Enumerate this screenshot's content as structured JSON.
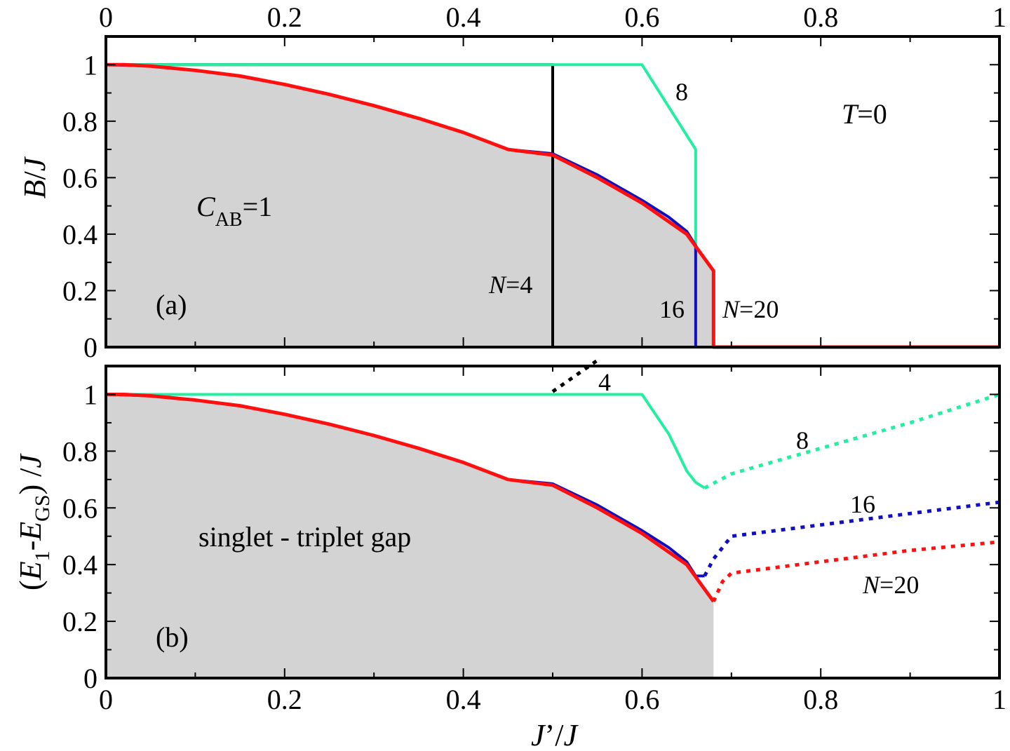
{
  "colors": {
    "n4": "#000000",
    "n8": "#22f0a0",
    "n16": "#1010c0",
    "n20": "#ff1010",
    "shade": "#d3d3d3"
  },
  "chart_data": [
    {
      "type": "line",
      "panel": "a",
      "panel_label": "(a)",
      "xlabel": "",
      "ylabel_parts": [
        "B",
        "/",
        "J"
      ],
      "xlim": [
        0,
        1
      ],
      "ylim": [
        0,
        1.1
      ],
      "x_ticks": [
        "0",
        "0.2",
        "0.4",
        "0.6",
        "0.8",
        "1"
      ],
      "y_ticks": [
        "0",
        "0.2",
        "0.4",
        "0.6",
        "0.8",
        "1"
      ],
      "annotations": {
        "temperature": {
          "italic": "T",
          "rest": "=0"
        },
        "region": {
          "main": "C",
          "sub": "AB",
          "rest": "=1"
        },
        "n4": {
          "italic": "N",
          "rest": "=4"
        },
        "n8": "8",
        "n16": "16",
        "n20": {
          "italic": "N",
          "rest": "=20"
        }
      },
      "shaded_region": "area under N=20 curve",
      "series": [
        {
          "key": "n4",
          "style": "solid",
          "x": [
            0,
            0.05,
            0.1,
            0.15,
            0.2,
            0.25,
            0.3,
            0.35,
            0.4,
            0.45,
            0.5,
            0.5,
            0.5,
            0.66
          ],
          "y": [
            1.0,
            1.0,
            1.0,
            1.0,
            1.0,
            1.0,
            1.0,
            1.0,
            1.0,
            1.0,
            1.0,
            0.68,
            0,
            0
          ]
        },
        {
          "key": "n8",
          "style": "solid",
          "x": [
            0,
            0.1,
            0.2,
            0.3,
            0.4,
            0.5,
            0.6,
            0.66,
            0.66,
            0.66
          ],
          "y": [
            1.0,
            1.0,
            1.0,
            1.0,
            1.0,
            1.0,
            1.0,
            0.7,
            0.7,
            0.36
          ]
        },
        {
          "key": "n16",
          "style": "solid",
          "x": [
            0,
            0.05,
            0.1,
            0.15,
            0.2,
            0.25,
            0.3,
            0.35,
            0.4,
            0.45,
            0.5,
            0.55,
            0.6,
            0.63,
            0.65,
            0.66,
            0.66
          ],
          "y": [
            1.0,
            0.995,
            0.98,
            0.96,
            0.93,
            0.895,
            0.855,
            0.81,
            0.76,
            0.7,
            0.685,
            0.61,
            0.52,
            0.46,
            0.41,
            0.36,
            0
          ]
        },
        {
          "key": "n20",
          "style": "solid",
          "x": [
            0,
            0.02,
            0.05,
            0.1,
            0.15,
            0.2,
            0.25,
            0.3,
            0.35,
            0.4,
            0.45,
            0.5,
            0.55,
            0.6,
            0.65,
            0.68,
            0.68,
            0.75,
            0.85,
            1.0
          ],
          "y": [
            1.0,
            1.0,
            0.995,
            0.98,
            0.96,
            0.93,
            0.895,
            0.855,
            0.81,
            0.76,
            0.7,
            0.68,
            0.6,
            0.51,
            0.4,
            0.27,
            0,
            0,
            0,
            0
          ]
        }
      ]
    },
    {
      "type": "line",
      "panel": "b",
      "panel_label": "(b)",
      "xlabel_parts": [
        "J",
        "’/",
        "J"
      ],
      "ylabel_parts": [
        "(",
        "E",
        "1",
        "-",
        "E",
        "GS",
        ") /",
        "J"
      ],
      "xlim": [
        0,
        1
      ],
      "ylim": [
        0,
        1.1
      ],
      "x_ticks": [
        "0",
        "0.2",
        "0.4",
        "0.6",
        "0.8",
        "1"
      ],
      "y_ticks": [
        "0",
        "0.2",
        "0.4",
        "0.6",
        "0.8",
        "1"
      ],
      "annotations": {
        "gap_text": "singlet - triplet gap",
        "n4": "4",
        "n8": "8",
        "n16": "16",
        "n20": {
          "italic": "N",
          "rest": "=20"
        }
      },
      "shaded_region": "area under N=20 curve",
      "series": [
        {
          "key": "n4",
          "style": "dotted",
          "x": [
            0.5,
            0.55
          ],
          "y": [
            1.01,
            1.12
          ]
        },
        {
          "key": "n8",
          "style": "solid",
          "x": [
            0,
            0.1,
            0.2,
            0.3,
            0.4,
            0.5,
            0.6,
            0.63,
            0.65,
            0.66,
            0.67
          ],
          "y": [
            1.0,
            1.0,
            1.0,
            1.0,
            1.0,
            1.0,
            1.0,
            0.86,
            0.73,
            0.69,
            0.67
          ]
        },
        {
          "key": "n8",
          "style": "dotted",
          "x": [
            0.67,
            0.7,
            0.8,
            0.9,
            1.0
          ],
          "y": [
            0.67,
            0.72,
            0.81,
            0.9,
            1.0
          ]
        },
        {
          "key": "n16",
          "style": "solid",
          "x": [
            0,
            0.05,
            0.1,
            0.15,
            0.2,
            0.25,
            0.3,
            0.35,
            0.4,
            0.45,
            0.5,
            0.55,
            0.6,
            0.63,
            0.65,
            0.66,
            0.67
          ],
          "y": [
            1.0,
            0.995,
            0.98,
            0.96,
            0.93,
            0.895,
            0.855,
            0.81,
            0.76,
            0.7,
            0.685,
            0.61,
            0.52,
            0.46,
            0.41,
            0.36,
            0.36
          ]
        },
        {
          "key": "n16",
          "style": "dotted",
          "x": [
            0.67,
            0.68,
            0.7,
            0.8,
            0.9,
            1.0
          ],
          "y": [
            0.36,
            0.42,
            0.5,
            0.54,
            0.58,
            0.62
          ]
        },
        {
          "key": "n20",
          "style": "solid",
          "x": [
            0,
            0.02,
            0.05,
            0.1,
            0.15,
            0.2,
            0.25,
            0.3,
            0.35,
            0.4,
            0.45,
            0.5,
            0.55,
            0.6,
            0.65,
            0.68
          ],
          "y": [
            1.0,
            1.0,
            0.995,
            0.98,
            0.96,
            0.93,
            0.895,
            0.855,
            0.81,
            0.76,
            0.7,
            0.68,
            0.6,
            0.51,
            0.4,
            0.27
          ]
        },
        {
          "key": "n20",
          "style": "dotted",
          "x": [
            0.68,
            0.69,
            0.7,
            0.8,
            0.9,
            1.0
          ],
          "y": [
            0.27,
            0.34,
            0.37,
            0.41,
            0.45,
            0.48
          ]
        }
      ]
    }
  ]
}
